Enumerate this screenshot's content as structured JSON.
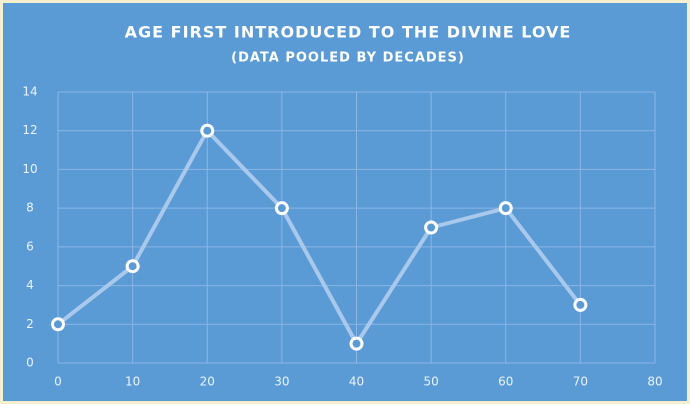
{
  "chart_data": {
    "type": "line",
    "title": "AGE FIRST INTRODUCED TO THE DIVINE LOVE",
    "subtitle": "(DATA POOLED BY DECADES)",
    "x": [
      0,
      10,
      20,
      30,
      40,
      50,
      60,
      70
    ],
    "series": [
      {
        "color": "#a8c8ec",
        "values": [
          2,
          5,
          12,
          8,
          1,
          7,
          8,
          3
        ]
      }
    ],
    "xlim": [
      0,
      80
    ],
    "xticks": [
      0,
      10,
      20,
      30,
      40,
      50,
      60,
      70,
      80
    ],
    "ylim": [
      0,
      14
    ],
    "yticks": [
      0,
      2,
      4,
      6,
      8,
      10,
      12,
      14
    ],
    "grid": true
  }
}
